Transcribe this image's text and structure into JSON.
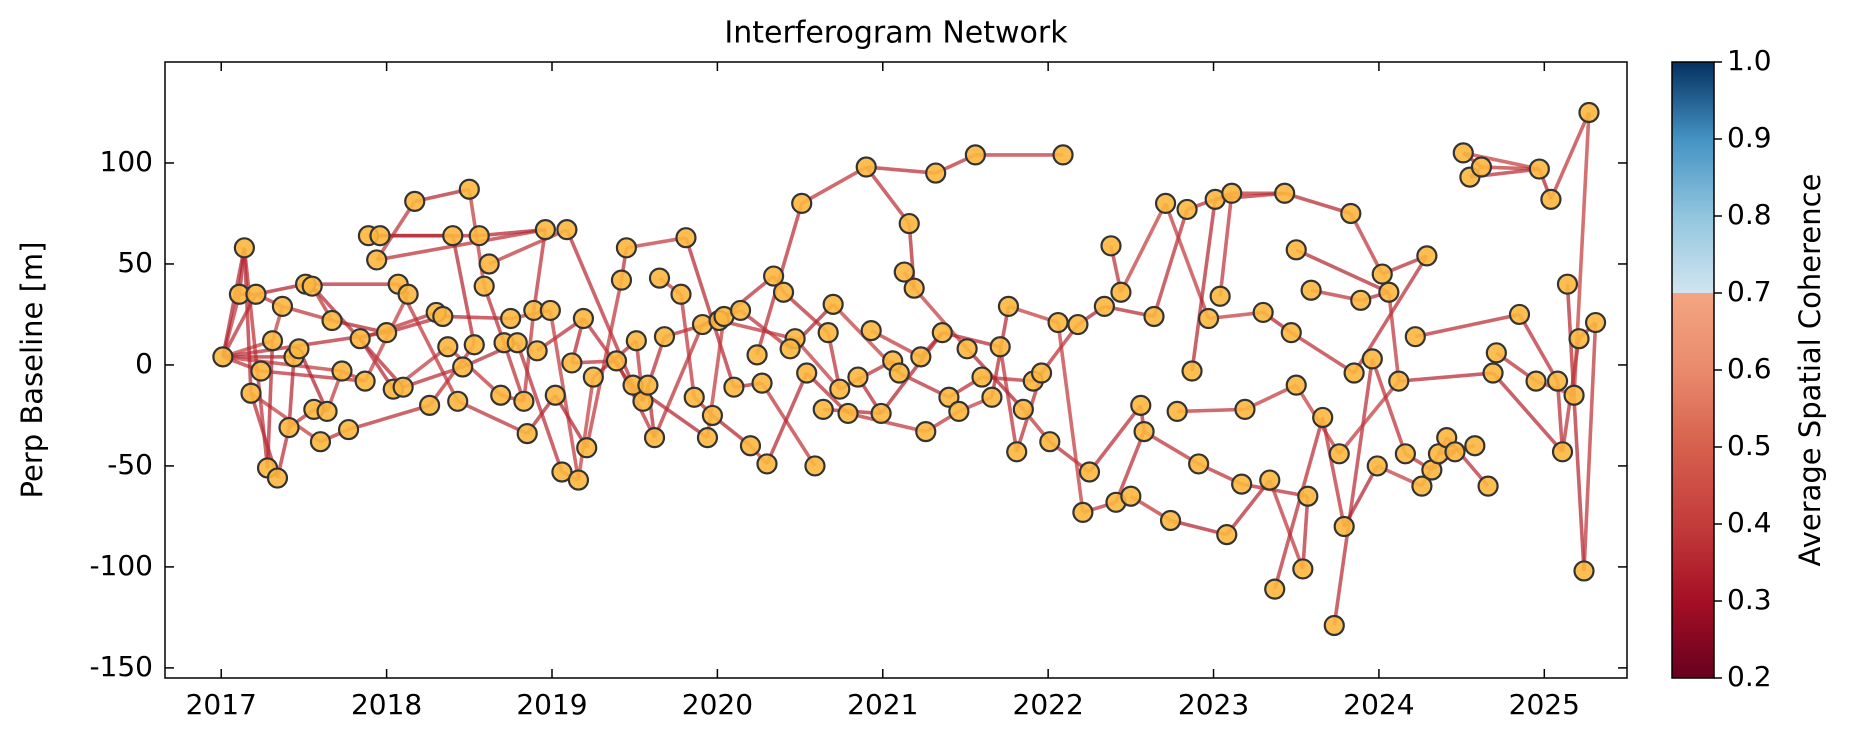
{
  "chart_data": {
    "type": "network",
    "title": "Interferogram Network",
    "y_label": "Perp Baseline [m]",
    "xlim": [
      2016.66,
      2025.5
    ],
    "xticks": [
      2017,
      2018,
      2019,
      2020,
      2021,
      2022,
      2023,
      2024,
      2025
    ],
    "ylim": [
      -155,
      150
    ],
    "yticks": [
      -150,
      -100,
      -50,
      0,
      50,
      100
    ],
    "node_color": "#fdb73e",
    "x": [
      2017.01,
      2017.11,
      2017.14,
      2017.18,
      2017.21,
      2017.24,
      2017.28,
      2017.31,
      2017.34,
      2017.37,
      2017.41,
      2017.44,
      2017.47,
      2017.51,
      2017.55,
      2017.56,
      2017.6,
      2017.64,
      2017.67,
      2017.73,
      2017.77,
      2017.84,
      2017.87,
      2017.89,
      2017.94,
      2017.96,
      2018.0,
      2018.04,
      2018.07,
      2018.13,
      2018.1,
      2018.17,
      2018.26,
      2018.3,
      2018.34,
      2018.37,
      2018.4,
      2018.43,
      2018.46,
      2018.5,
      2018.53,
      2018.56,
      2018.62,
      2018.59,
      2018.69,
      2018.71,
      2018.75,
      2018.79,
      2018.83,
      2018.85,
      2018.89,
      2018.91,
      2018.96,
      2018.99,
      2019.02,
      2019.06,
      2019.09,
      2019.12,
      2019.16,
      2019.19,
      2019.21,
      2019.25,
      2019.39,
      2019.42,
      2019.45,
      2019.49,
      2019.51,
      2019.55,
      2019.58,
      2019.62,
      2019.65,
      2019.68,
      2019.78,
      2019.81,
      2019.86,
      2019.91,
      2019.94,
      2019.97,
      2020.01,
      2020.04,
      2020.1,
      2020.14,
      2020.2,
      2020.24,
      2020.27,
      2020.3,
      2020.34,
      2020.4,
      2020.47,
      2020.44,
      2020.51,
      2020.54,
      2020.59,
      2020.64,
      2020.67,
      2020.7,
      2020.74,
      2020.79,
      2020.85,
      2020.9,
      2020.93,
      2020.99,
      2021.06,
      2021.1,
      2021.16,
      2021.13,
      2021.19,
      2021.23,
      2021.26,
      2021.36,
      2021.32,
      2021.4,
      2021.46,
      2021.51,
      2021.56,
      2021.6,
      2021.66,
      2021.71,
      2021.76,
      2021.81,
      2021.85,
      2021.91,
      2021.96,
      2022.01,
      2022.06,
      2022.09,
      2022.18,
      2022.21,
      2022.25,
      2022.34,
      2022.38,
      2022.44,
      2022.41,
      2022.5,
      2022.56,
      2022.58,
      2022.64,
      2022.71,
      2022.74,
      2022.78,
      2022.84,
      2022.87,
      2022.91,
      2022.97,
      2023.01,
      2023.04,
      2023.08,
      2023.11,
      2023.17,
      2023.19,
      2023.3,
      2023.34,
      2023.37,
      2023.43,
      2023.47,
      2023.5,
      2023.54,
      2023.59,
      2023.57,
      2023.5,
      2023.66,
      2023.73,
      2023.76,
      2023.79,
      2023.83,
      2023.85,
      2023.89,
      2023.96,
      2023.99,
      2024.02,
      2024.06,
      2024.12,
      2024.16,
      2024.22,
      2024.26,
      2024.29,
      2024.32,
      2024.36,
      2024.41,
      2024.46,
      2024.51,
      2024.55,
      2024.58,
      2024.62,
      2024.66,
      2024.69,
      2024.71,
      2024.85,
      2024.95,
      2024.97,
      2025.04,
      2025.08,
      2025.11,
      2025.14,
      2025.18,
      2025.21,
      2025.24,
      2025.27,
      2025.31
    ],
    "values": [
      4,
      35,
      58,
      -14,
      35,
      -3,
      -51,
      12,
      -56,
      29,
      -31,
      4,
      8,
      40,
      39,
      -22,
      -38,
      -23,
      22,
      -3,
      -32,
      13,
      -8,
      64,
      52,
      64,
      16,
      -12,
      40,
      35,
      -11,
      81,
      -20,
      26,
      24,
      9,
      64,
      -18,
      -1,
      87,
      10,
      64,
      50,
      39,
      -15,
      11,
      23,
      11,
      -18,
      -34,
      27,
      7,
      67,
      27,
      -15,
      -53,
      67,
      1,
      -57,
      23,
      -41,
      -6,
      2,
      42,
      58,
      -10,
      12,
      -18,
      -10,
      -36,
      43,
      14,
      35,
      63,
      -16,
      20,
      -36,
      -25,
      22,
      24,
      -11,
      27,
      -40,
      5,
      -9,
      -49,
      44,
      36,
      13,
      8,
      80,
      -4,
      -50,
      -22,
      16,
      30,
      -12,
      -24,
      -6,
      98,
      17,
      -24,
      2,
      -4,
      70,
      46,
      38,
      4,
      -33,
      16,
      95,
      -16,
      -23,
      8,
      104,
      -6,
      -16,
      9,
      29,
      -43,
      -22,
      -8,
      -4,
      -38,
      21,
      104,
      20,
      -73,
      -53,
      29,
      59,
      36,
      -68,
      -65,
      -20,
      -33,
      24,
      80,
      -77,
      -23,
      77,
      -3,
      -49,
      23,
      82,
      34,
      -84,
      85,
      -59,
      -22,
      26,
      -57,
      -111,
      85,
      16,
      -10,
      -101,
      37,
      -65,
      57,
      -26,
      -129,
      -44,
      -80,
      75,
      -4,
      32,
      3,
      -50,
      45,
      36,
      -8,
      -44,
      14,
      -60,
      54,
      -52,
      -44,
      -36,
      -43,
      105,
      93,
      -40,
      98,
      -60,
      -4,
      6,
      25,
      -8,
      97,
      82,
      -8,
      -43,
      40,
      -15,
      13,
      -102,
      125,
      21
    ],
    "edges": [
      [
        0,
        4,
        0.36
      ],
      [
        0,
        1,
        0.38
      ],
      [
        0,
        2,
        0.34
      ],
      [
        0,
        5,
        0.37
      ],
      [
        0,
        7,
        0.4
      ],
      [
        0,
        11,
        0.35
      ],
      [
        0,
        19,
        0.39
      ],
      [
        0,
        26,
        0.36
      ],
      [
        1,
        2,
        0.33
      ],
      [
        1,
        4,
        0.41
      ],
      [
        2,
        3,
        0.35
      ],
      [
        2,
        6,
        0.37
      ],
      [
        3,
        8,
        0.36
      ],
      [
        3,
        16,
        0.39
      ],
      [
        4,
        13,
        0.34
      ],
      [
        4,
        9,
        0.38
      ],
      [
        5,
        22,
        0.37
      ],
      [
        6,
        7,
        0.35
      ],
      [
        7,
        9,
        0.4
      ],
      [
        8,
        10,
        0.36
      ],
      [
        9,
        18,
        0.38
      ],
      [
        10,
        11,
        0.35
      ],
      [
        10,
        15,
        0.37
      ],
      [
        11,
        12,
        0.39
      ],
      [
        12,
        17,
        0.34
      ],
      [
        13,
        28,
        0.36
      ],
      [
        14,
        18,
        0.38
      ],
      [
        14,
        30,
        0.35
      ],
      [
        15,
        17,
        0.37
      ],
      [
        16,
        20,
        0.36
      ],
      [
        17,
        19,
        0.39
      ],
      [
        18,
        26,
        0.34
      ],
      [
        19,
        22,
        0.38
      ],
      [
        20,
        32,
        0.36
      ],
      [
        21,
        27,
        0.35
      ],
      [
        21,
        33,
        0.37
      ],
      [
        22,
        29,
        0.4
      ],
      [
        23,
        25,
        0.33
      ],
      [
        23,
        36,
        0.36
      ],
      [
        24,
        31,
        0.38
      ],
      [
        25,
        41,
        0.35
      ],
      [
        24,
        52,
        0.37
      ],
      [
        26,
        34,
        0.36
      ],
      [
        27,
        35,
        0.39
      ],
      [
        28,
        29,
        0.34
      ],
      [
        28,
        37,
        0.38
      ],
      [
        30,
        38,
        0.36
      ],
      [
        31,
        39,
        0.35
      ],
      [
        32,
        40,
        0.37
      ],
      [
        33,
        34,
        0.4
      ],
      [
        34,
        46,
        0.36
      ],
      [
        35,
        44,
        0.38
      ],
      [
        36,
        40,
        0.35
      ],
      [
        37,
        49,
        0.37
      ],
      [
        38,
        47,
        0.36
      ],
      [
        39,
        43,
        0.39
      ],
      [
        41,
        52,
        0.34
      ],
      [
        42,
        56,
        0.38
      ],
      [
        43,
        45,
        0.36
      ],
      [
        44,
        48,
        0.35
      ],
      [
        45,
        48,
        0.37
      ],
      [
        46,
        53,
        0.4
      ],
      [
        47,
        55,
        0.36
      ],
      [
        48,
        50,
        0.38
      ],
      [
        49,
        54,
        0.35
      ],
      [
        50,
        52,
        0.37
      ],
      [
        51,
        59,
        0.36
      ],
      [
        53,
        58,
        0.39
      ],
      [
        54,
        60,
        0.34
      ],
      [
        55,
        58,
        0.38
      ],
      [
        56,
        65,
        0.36
      ],
      [
        57,
        59,
        0.35
      ],
      [
        57,
        62,
        0.37
      ],
      [
        58,
        61,
        0.4
      ],
      [
        59,
        67,
        0.36
      ],
      [
        60,
        63,
        0.38
      ],
      [
        61,
        66,
        0.35
      ],
      [
        62,
        69,
        0.37
      ],
      [
        63,
        64,
        0.36
      ],
      [
        64,
        73,
        0.39
      ],
      [
        65,
        76,
        0.34
      ],
      [
        66,
        67,
        0.38
      ],
      [
        67,
        71,
        0.36
      ],
      [
        68,
        69,
        0.35
      ],
      [
        69,
        75,
        0.37
      ],
      [
        70,
        72,
        0.4
      ],
      [
        71,
        78,
        0.36
      ],
      [
        72,
        74,
        0.38
      ],
      [
        73,
        80,
        0.35
      ],
      [
        74,
        77,
        0.37
      ],
      [
        75,
        81,
        0.36
      ],
      [
        76,
        79,
        0.39
      ],
      [
        77,
        82,
        0.34
      ],
      [
        78,
        88,
        0.38
      ],
      [
        79,
        86,
        0.36
      ],
      [
        80,
        84,
        0.35
      ],
      [
        81,
        89,
        0.37
      ],
      [
        82,
        85,
        0.4
      ],
      [
        83,
        90,
        0.36
      ],
      [
        84,
        92,
        0.38
      ],
      [
        85,
        91,
        0.35
      ],
      [
        86,
        87,
        0.37
      ],
      [
        87,
        94,
        0.36
      ],
      [
        88,
        96,
        0.39
      ],
      [
        89,
        95,
        0.34
      ],
      [
        90,
        99,
        0.38
      ],
      [
        91,
        97,
        0.36
      ],
      [
        93,
        101,
        0.35
      ],
      [
        94,
        96,
        0.37
      ],
      [
        95,
        103,
        0.4
      ],
      [
        96,
        102,
        0.36
      ],
      [
        97,
        108,
        0.38
      ],
      [
        98,
        101,
        0.35
      ],
      [
        99,
        104,
        0.37
      ],
      [
        99,
        110,
        0.36
      ],
      [
        100,
        107,
        0.39
      ],
      [
        101,
        109,
        0.34
      ],
      [
        102,
        103,
        0.38
      ],
      [
        103,
        111,
        0.36
      ],
      [
        104,
        106,
        0.35
      ],
      [
        105,
        106,
        0.37
      ],
      [
        106,
        113,
        0.4
      ],
      [
        107,
        109,
        0.36
      ],
      [
        108,
        112,
        0.38
      ],
      [
        109,
        117,
        0.35
      ],
      [
        110,
        114,
        0.37
      ],
      [
        111,
        115,
        0.36
      ],
      [
        112,
        116,
        0.39
      ],
      [
        113,
        120,
        0.34
      ],
      [
        114,
        125,
        0.38
      ],
      [
        115,
        121,
        0.36
      ],
      [
        116,
        118,
        0.35
      ],
      [
        117,
        119,
        0.37
      ],
      [
        118,
        124,
        0.4
      ],
      [
        119,
        122,
        0.36
      ],
      [
        120,
        123,
        0.38
      ],
      [
        121,
        122,
        0.35
      ],
      [
        122,
        126,
        0.37
      ],
      [
        123,
        128,
        0.36
      ],
      [
        124,
        127,
        0.39
      ],
      [
        126,
        129,
        0.34
      ],
      [
        127,
        132,
        0.38
      ],
      [
        128,
        134,
        0.36
      ],
      [
        129,
        136,
        0.35
      ],
      [
        130,
        131,
        0.37
      ],
      [
        131,
        137,
        0.4
      ],
      [
        132,
        135,
        0.36
      ],
      [
        133,
        138,
        0.38
      ],
      [
        134,
        135,
        0.35
      ],
      [
        135,
        142,
        0.37
      ],
      [
        136,
        140,
        0.36
      ],
      [
        137,
        143,
        0.39
      ],
      [
        138,
        146,
        0.34
      ],
      [
        139,
        149,
        0.38
      ],
      [
        140,
        147,
        0.36
      ],
      [
        141,
        144,
        0.35
      ],
      [
        142,
        148,
        0.37
      ],
      [
        143,
        150,
        0.4
      ],
      [
        144,
        153,
        0.36
      ],
      [
        145,
        147,
        0.38
      ],
      [
        146,
        151,
        0.35
      ],
      [
        147,
        153,
        0.37
      ],
      [
        148,
        158,
        0.36
      ],
      [
        149,
        155,
        0.39
      ],
      [
        150,
        154,
        0.34
      ],
      [
        151,
        156,
        0.38
      ],
      [
        152,
        160,
        0.36
      ],
      [
        153,
        164,
        0.35
      ],
      [
        154,
        165,
        0.37
      ],
      [
        155,
        162,
        0.4
      ],
      [
        156,
        158,
        0.36
      ],
      [
        157,
        166,
        0.38
      ],
      [
        159,
        170,
        0.35
      ],
      [
        160,
        163,
        0.37
      ],
      [
        161,
        167,
        0.36
      ],
      [
        162,
        171,
        0.39
      ],
      [
        163,
        168,
        0.34
      ],
      [
        164,
        169,
        0.38
      ],
      [
        165,
        175,
        0.36
      ],
      [
        166,
        170,
        0.35
      ],
      [
        167,
        172,
        0.37
      ],
      [
        168,
        174,
        0.4
      ],
      [
        169,
        175,
        0.36
      ],
      [
        170,
        171,
        0.38
      ],
      [
        171,
        185,
        0.35
      ],
      [
        172,
        176,
        0.37
      ],
      [
        173,
        187,
        0.36
      ],
      [
        174,
        178,
        0.39
      ],
      [
        176,
        179,
        0.34
      ],
      [
        177,
        182,
        0.38
      ],
      [
        178,
        184,
        0.36
      ],
      [
        180,
        183,
        0.35
      ],
      [
        181,
        183,
        0.37
      ],
      [
        180,
        189,
        0.4
      ],
      [
        181,
        189,
        0.36
      ],
      [
        183,
        189,
        0.38
      ],
      [
        185,
        192,
        0.35
      ],
      [
        186,
        188,
        0.37
      ],
      [
        187,
        191,
        0.36
      ],
      [
        188,
        194,
        0.39
      ],
      [
        189,
        190,
        0.34
      ],
      [
        190,
        197,
        0.38
      ],
      [
        191,
        192,
        0.36
      ],
      [
        193,
        196,
        0.35
      ],
      [
        192,
        195,
        0.37
      ],
      [
        194,
        197,
        0.4
      ],
      [
        195,
        198,
        0.36
      ],
      [
        196,
        198,
        0.38
      ]
    ],
    "colorbar": {
      "label": "Average Spatial Coherence",
      "clim": [
        0.2,
        1
      ],
      "ticks": [
        0.2,
        0.3,
        0.4,
        0.5,
        0.6,
        0.7,
        0.8,
        0.9,
        {
          "value": 1,
          "label": "1.0"
        }
      ]
    }
  }
}
